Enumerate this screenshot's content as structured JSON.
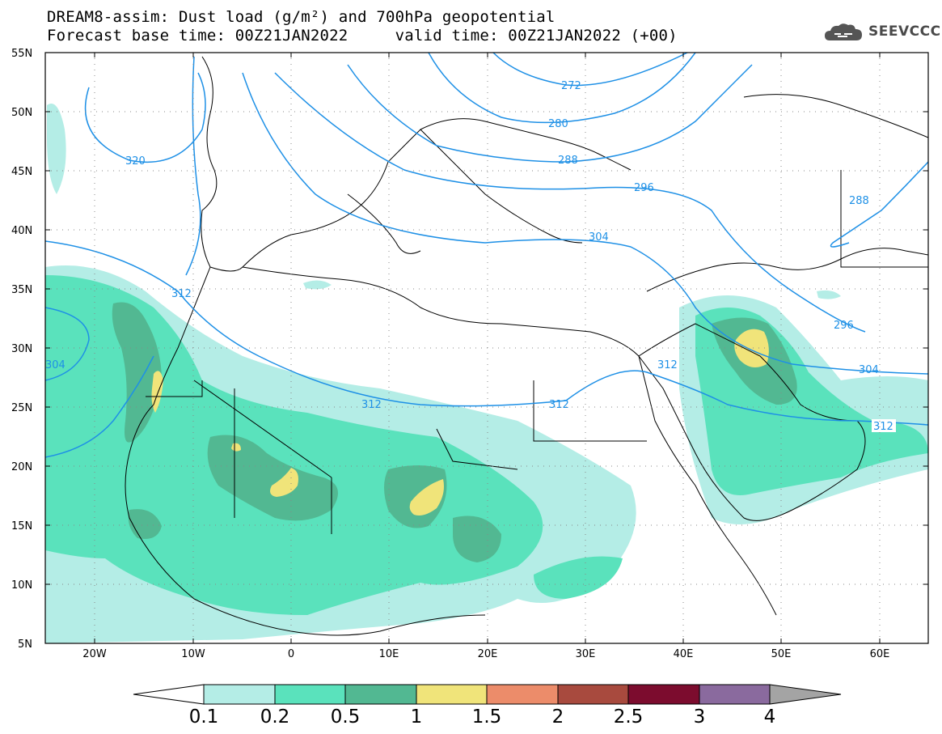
{
  "title": {
    "line1": "DREAM8-assim: Dust load (g/m²) and 700hPa geopotential",
    "line2": "Forecast base time: 00Z21JAN2022     valid time: 00Z21JAN2022 (+00)"
  },
  "logo": {
    "text": "SEEVCCC",
    "icon": "cloud-icon"
  },
  "map": {
    "lat_labels": [
      "55N",
      "50N",
      "45N",
      "40N",
      "35N",
      "30N",
      "25N",
      "20N",
      "15N",
      "10N",
      "5N"
    ],
    "lon_labels": [
      "20W",
      "10W",
      "0",
      "10E",
      "20E",
      "30E",
      "40E",
      "50E",
      "60E"
    ],
    "contour_color": "#1e90e6",
    "contour_labels": [
      "272",
      "280",
      "288",
      "296",
      "304",
      "312",
      "320",
      "312",
      "312",
      "312",
      "304",
      "296",
      "288",
      "304",
      "312"
    ]
  },
  "colorbar": {
    "levels": [
      "0.1",
      "0.2",
      "0.5",
      "1",
      "1.5",
      "2",
      "2.5",
      "3",
      "4"
    ],
    "colors": [
      "#b4ede6",
      "#5ae2bc",
      "#52b892",
      "#f0e47a",
      "#ec8c6a",
      "#a84a3e",
      "#7c0c2e",
      "#8a6a9e",
      "#a4a4a4"
    ]
  }
}
